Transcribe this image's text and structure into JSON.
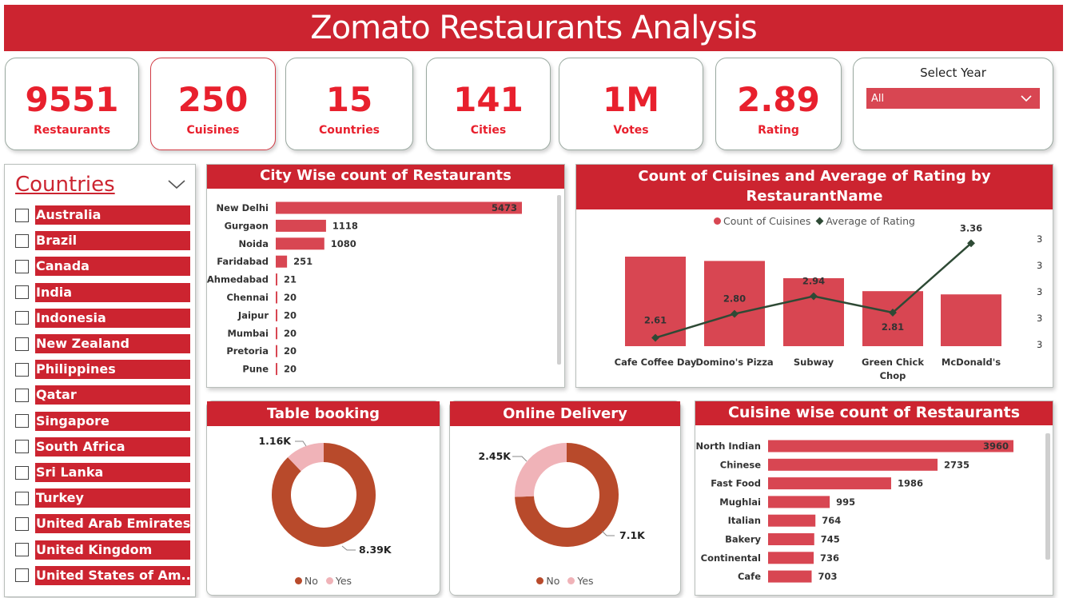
{
  "title": "Zomato Restaurants Analysis",
  "kpis": [
    {
      "value": "9551",
      "label": "Restaurants"
    },
    {
      "value": "250",
      "label": "Cuisines"
    },
    {
      "value": "15",
      "label": "Countries"
    },
    {
      "value": "141",
      "label": "Cities"
    },
    {
      "value": "1M",
      "label": "Votes"
    },
    {
      "value": "2.89",
      "label": "Rating"
    }
  ],
  "year_filter": {
    "title": "Select Year",
    "selected": "All"
  },
  "countries_filter": {
    "title": "Countries",
    "items": [
      "Australia",
      "Brazil",
      "Canada",
      "India",
      "Indonesia",
      "New Zealand",
      "Philippines",
      "Qatar",
      "Singapore",
      "South Africa",
      "Sri Lanka",
      "Turkey",
      "United Arab Emirates",
      "United Kingdom",
      "United States of Am..."
    ]
  },
  "colors": {
    "accent": "#cc2430",
    "bar": "#d84652",
    "line": "#2e4a35",
    "donut_no": "#b84a2b",
    "donut_yes": "#f0b3b8"
  },
  "chart_data": [
    {
      "type": "bar",
      "orientation": "horizontal",
      "title": "City Wise count of Restaurants",
      "categories": [
        "New Delhi",
        "Gurgaon",
        "Noida",
        "Faridabad",
        "Ahmedabad",
        "Chennai",
        "Jaipur",
        "Mumbai",
        "Pretoria",
        "Pune"
      ],
      "values": [
        5473,
        1118,
        1080,
        251,
        21,
        20,
        20,
        20,
        20,
        20
      ]
    },
    {
      "type": "bar",
      "title": "Count of Cuisines and Average of Rating by RestaurantName",
      "categories": [
        "Cafe Coffee Day",
        "Domino's Pizza",
        "Subway",
        "Green Chick Chop",
        "McDonald's"
      ],
      "series": [
        {
          "name": "Count of Cuisines",
          "type": "bar",
          "values": [
            83,
            79,
            63,
            51,
            48
          ]
        },
        {
          "name": "Average of Rating",
          "type": "line",
          "values": [
            2.61,
            2.8,
            2.94,
            2.81,
            3.36
          ]
        }
      ],
      "y2_ticks": [
        "3",
        "3",
        "3",
        "3",
        "3"
      ],
      "legend": "top"
    },
    {
      "type": "pie",
      "title": "Table booking",
      "labels": [
        "No",
        "Yes"
      ],
      "values": [
        8390,
        1160
      ],
      "value_labels": [
        "8.39K",
        "1.16K"
      ]
    },
    {
      "type": "pie",
      "title": "Online Delivery",
      "labels": [
        "No",
        "Yes"
      ],
      "values": [
        7100,
        2450
      ],
      "value_labels": [
        "7.1K",
        "2.45K"
      ]
    },
    {
      "type": "bar",
      "orientation": "horizontal",
      "title": "Cuisine wise count of Restaurants",
      "categories": [
        "North Indian",
        "Chinese",
        "Fast Food",
        "Mughlai",
        "Italian",
        "Bakery",
        "Continental",
        "Cafe"
      ],
      "values": [
        3960,
        2735,
        1986,
        995,
        764,
        745,
        736,
        703
      ]
    }
  ]
}
